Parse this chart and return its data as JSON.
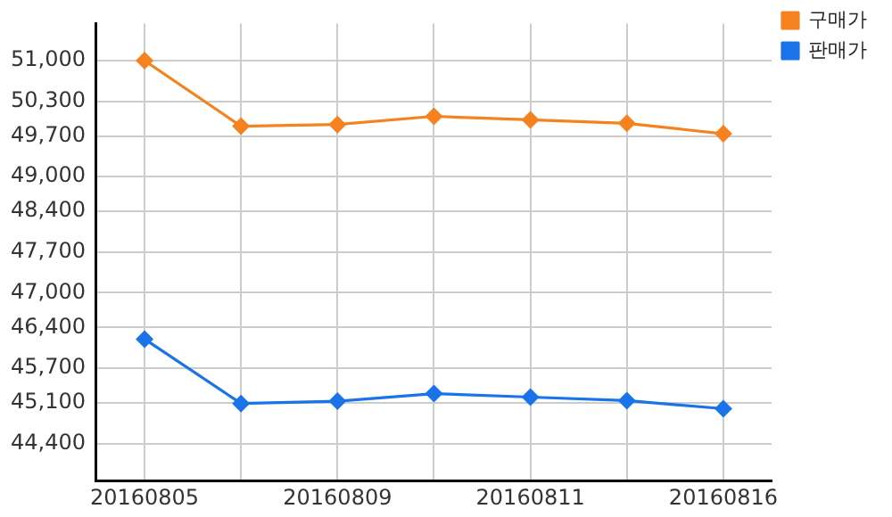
{
  "chart_data": {
    "type": "line",
    "categories": [
      "20160805",
      null,
      "20160809",
      null,
      "20160811",
      null,
      "20160816"
    ],
    "series": [
      {
        "name": "구매가",
        "color": "#f5821f",
        "values": [
          51000,
          49870,
          49900,
          50040,
          49980,
          49920,
          49740
        ]
      },
      {
        "name": "판매가",
        "color": "#1a73e8",
        "values": [
          46200,
          45090,
          45130,
          45260,
          45200,
          45140,
          45000
        ]
      }
    ],
    "ylim": [
      43760,
      51640
    ],
    "yticks": [
      {
        "value": 51000,
        "label": "51,000"
      },
      {
        "value": 50300,
        "label": "50,300"
      },
      {
        "value": 49700,
        "label": "49,700"
      },
      {
        "value": 49000,
        "label": "49,000"
      },
      {
        "value": 48400,
        "label": "48,400"
      },
      {
        "value": 47700,
        "label": "47,700"
      },
      {
        "value": 47000,
        "label": "47,000"
      },
      {
        "value": 46400,
        "label": "46,400"
      },
      {
        "value": 45700,
        "label": "45,700"
      },
      {
        "value": 45100,
        "label": "45,100"
      },
      {
        "value": 44400,
        "label": "44,400"
      }
    ],
    "grid": true,
    "legend": "right",
    "marker": "diamond",
    "line_style": "solid"
  }
}
